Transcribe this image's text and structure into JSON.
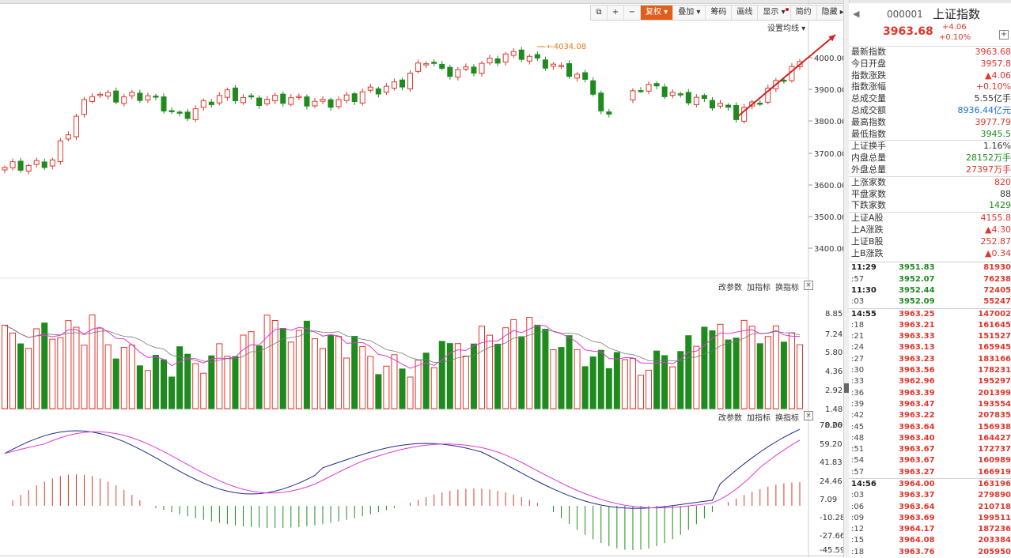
{
  "toolbar": {
    "fuquan": "复权",
    "diejia": "叠加",
    "choumai": "筹码",
    "huaxian": "画线",
    "xianshi": "显示",
    "jianyue": "简约",
    "yincang": "隐藏"
  },
  "main_chart": {
    "ma_setting": "设置均线",
    "peak_label": "4034.08",
    "y_ticks": [
      "4000.00",
      "3900.00",
      "3800.00",
      "3700.00",
      "3600.00",
      "3500.00",
      "3400.00"
    ]
  },
  "volume_pane": {
    "links": [
      "改参数",
      "加指标",
      "换指标"
    ],
    "y_ticks": [
      "8.85",
      "7.24",
      "5.80",
      "4.36",
      "2.92",
      "1.48",
      "0.00"
    ]
  },
  "macd_pane": {
    "links": [
      "改参数",
      "加指标",
      "换指标"
    ],
    "y_ticks": [
      "78.26",
      "59.20",
      "41.83",
      "24.46",
      "7.09",
      "-10.28",
      "-27.66",
      "-45.59"
    ]
  },
  "colors": {
    "up": "#e0362b",
    "down": "#1f8b1f",
    "ma": "#e03ad6",
    "dea": "#1d2a8c"
  },
  "quote": {
    "code": "000001",
    "name": "上证指数",
    "price": "3963.68",
    "change": "+4.06",
    "change_pct": "+0.10%",
    "stats": [
      {
        "label": "最新指数",
        "value": "3963.68",
        "color": "red"
      },
      {
        "label": "今日开盘",
        "value": "3957.8",
        "color": "red"
      },
      {
        "label": "指数涨跌",
        "value": "▲4.06",
        "color": "red"
      },
      {
        "label": "指数涨幅",
        "value": "+0.10%",
        "color": "red"
      },
      {
        "label": "总成交量",
        "value": "5.55亿手",
        "color": ""
      },
      {
        "label": "总成交额",
        "value": "8936.44亿元",
        "color": "blue"
      },
      {
        "label": "最高指数",
        "value": "3977.79",
        "color": "red"
      },
      {
        "label": "最低指数",
        "value": "3945.5",
        "color": "green"
      },
      {
        "label": "上证换手",
        "value": "1.16%",
        "color": "",
        "sep": true
      },
      {
        "label": "内盘总量",
        "value": "28152万手",
        "color": "green"
      },
      {
        "label": "外盘总量",
        "value": "27397万手",
        "color": "red"
      },
      {
        "label": "上涨家数",
        "value": "820",
        "color": "red",
        "sep": true
      },
      {
        "label": "平盘家数",
        "value": "88",
        "color": ""
      },
      {
        "label": "下跌家数",
        "value": "1429",
        "color": "green"
      },
      {
        "label": "上证A股",
        "value": "4155.8",
        "color": "red",
        "sep": true
      },
      {
        "label": "上A涨跌",
        "value": "▲4.30",
        "color": "red"
      },
      {
        "label": "上证B股",
        "value": "252.87",
        "color": "red"
      },
      {
        "label": "上B涨跌",
        "value": "▲0.34",
        "color": "red"
      }
    ],
    "ticks": [
      {
        "time": "11:29",
        "price": "3951.83",
        "vol": "81930",
        "major": true
      },
      {
        "time": ":57",
        "price": "3952.07",
        "vol": "76238"
      },
      {
        "time": "11:30",
        "price": "3952.44",
        "vol": "72405",
        "major": true
      },
      {
        "time": ":03",
        "price": "3952.09",
        "vol": "55247"
      },
      {
        "time": "14:55",
        "price": "3963.25",
        "vol": "147002",
        "major": true,
        "sep": true
      },
      {
        "time": ":18",
        "price": "3963.21",
        "vol": "161645"
      },
      {
        "time": ":21",
        "price": "3963.33",
        "vol": "151527"
      },
      {
        "time": ":24",
        "price": "3963.13",
        "vol": "165945"
      },
      {
        "time": ":27",
        "price": "3963.23",
        "vol": "183166"
      },
      {
        "time": ":30",
        "price": "3963.56",
        "vol": "178231"
      },
      {
        "time": ":33",
        "price": "3962.96",
        "vol": "195297"
      },
      {
        "time": ":36",
        "price": "3963.39",
        "vol": "201399"
      },
      {
        "time": ":39",
        "price": "3963.47",
        "vol": "193554"
      },
      {
        "time": ":42",
        "price": "3963.22",
        "vol": "207835"
      },
      {
        "time": ":45",
        "price": "3963.64",
        "vol": "156938"
      },
      {
        "time": ":48",
        "price": "3963.40",
        "vol": "164427"
      },
      {
        "time": ":51",
        "price": "3963.67",
        "vol": "172737"
      },
      {
        "time": ":54",
        "price": "3963.67",
        "vol": "160989"
      },
      {
        "time": ":57",
        "price": "3963.27",
        "vol": "166919"
      },
      {
        "time": "14:56",
        "price": "3964.00",
        "vol": "163196",
        "major": true,
        "sep": true
      },
      {
        "time": ":03",
        "price": "3963.37",
        "vol": "279890"
      },
      {
        "time": ":06",
        "price": "3963.64",
        "vol": "210718"
      },
      {
        "time": ":09",
        "price": "3963.69",
        "vol": "199511"
      },
      {
        "time": ":12",
        "price": "3964.17",
        "vol": "187236"
      },
      {
        "time": ":15",
        "price": "3964.08",
        "vol": "203384"
      },
      {
        "time": ":18",
        "price": "3963.76",
        "vol": "205950"
      }
    ]
  }
}
